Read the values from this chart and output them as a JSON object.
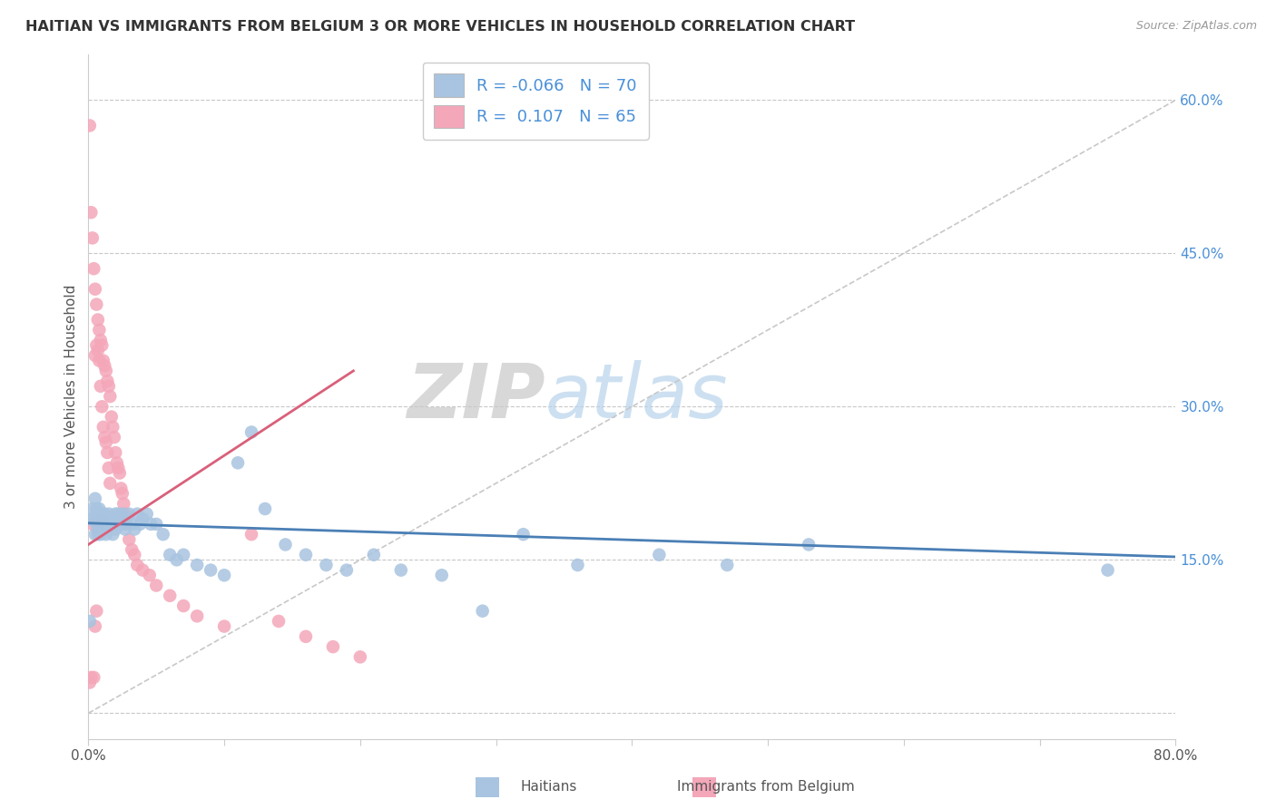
{
  "title": "HAITIAN VS IMMIGRANTS FROM BELGIUM 3 OR MORE VEHICLES IN HOUSEHOLD CORRELATION CHART",
  "source": "Source: ZipAtlas.com",
  "ylabel": "3 or more Vehicles in Household",
  "ytick_vals": [
    0.0,
    0.15,
    0.3,
    0.45,
    0.6
  ],
  "ytick_labels": [
    "",
    "15.0%",
    "30.0%",
    "45.0%",
    "60.0%"
  ],
  "xlim": [
    0.0,
    0.8
  ],
  "ylim": [
    -0.025,
    0.645
  ],
  "blue_R": "-0.066",
  "blue_N": "70",
  "pink_R": "0.107",
  "pink_N": "65",
  "blue_color": "#a8c4e0",
  "pink_color": "#f4a7b9",
  "blue_line_color": "#4a7fb5",
  "pink_line_color": "#d9607a",
  "dashed_line_color": "#c8c8c8",
  "legend_label_blue": "Haitians",
  "legend_label_pink": "Immigrants from Belgium",
  "watermark_zip": "ZIP",
  "watermark_atlas": "atlas",
  "blue_scatter_x": [
    0.001,
    0.002,
    0.003,
    0.004,
    0.005,
    0.005,
    0.006,
    0.006,
    0.007,
    0.007,
    0.008,
    0.008,
    0.009,
    0.009,
    0.01,
    0.01,
    0.011,
    0.012,
    0.013,
    0.013,
    0.014,
    0.015,
    0.015,
    0.016,
    0.017,
    0.018,
    0.019,
    0.02,
    0.02,
    0.021,
    0.022,
    0.023,
    0.024,
    0.025,
    0.026,
    0.027,
    0.028,
    0.03,
    0.032,
    0.034,
    0.036,
    0.038,
    0.04,
    0.043,
    0.046,
    0.05,
    0.055,
    0.06,
    0.065,
    0.07,
    0.08,
    0.09,
    0.1,
    0.11,
    0.12,
    0.13,
    0.145,
    0.16,
    0.175,
    0.19,
    0.21,
    0.23,
    0.26,
    0.29,
    0.32,
    0.36,
    0.42,
    0.47,
    0.53,
    0.75
  ],
  "blue_scatter_y": [
    0.09,
    0.19,
    0.2,
    0.19,
    0.21,
    0.175,
    0.2,
    0.185,
    0.195,
    0.175,
    0.2,
    0.185,
    0.19,
    0.175,
    0.195,
    0.185,
    0.19,
    0.195,
    0.185,
    0.175,
    0.19,
    0.195,
    0.185,
    0.19,
    0.185,
    0.175,
    0.185,
    0.195,
    0.18,
    0.19,
    0.195,
    0.185,
    0.19,
    0.195,
    0.185,
    0.18,
    0.19,
    0.195,
    0.185,
    0.18,
    0.195,
    0.185,
    0.19,
    0.195,
    0.185,
    0.185,
    0.175,
    0.155,
    0.15,
    0.155,
    0.145,
    0.14,
    0.135,
    0.245,
    0.275,
    0.2,
    0.165,
    0.155,
    0.145,
    0.14,
    0.155,
    0.14,
    0.135,
    0.1,
    0.175,
    0.145,
    0.155,
    0.145,
    0.165,
    0.14
  ],
  "pink_scatter_x": [
    0.001,
    0.001,
    0.002,
    0.002,
    0.003,
    0.003,
    0.004,
    0.004,
    0.005,
    0.005,
    0.005,
    0.006,
    0.006,
    0.006,
    0.007,
    0.007,
    0.007,
    0.008,
    0.008,
    0.008,
    0.009,
    0.009,
    0.01,
    0.01,
    0.01,
    0.011,
    0.011,
    0.012,
    0.012,
    0.013,
    0.013,
    0.014,
    0.014,
    0.015,
    0.015,
    0.016,
    0.016,
    0.017,
    0.018,
    0.019,
    0.02,
    0.021,
    0.022,
    0.023,
    0.024,
    0.025,
    0.026,
    0.027,
    0.028,
    0.03,
    0.032,
    0.034,
    0.036,
    0.04,
    0.045,
    0.05,
    0.06,
    0.07,
    0.08,
    0.1,
    0.12,
    0.14,
    0.16,
    0.18,
    0.2
  ],
  "pink_scatter_y": [
    0.575,
    0.03,
    0.49,
    0.035,
    0.465,
    0.185,
    0.435,
    0.035,
    0.415,
    0.35,
    0.085,
    0.4,
    0.36,
    0.1,
    0.385,
    0.355,
    0.18,
    0.375,
    0.345,
    0.185,
    0.365,
    0.32,
    0.36,
    0.3,
    0.19,
    0.345,
    0.28,
    0.34,
    0.27,
    0.335,
    0.265,
    0.325,
    0.255,
    0.32,
    0.24,
    0.31,
    0.225,
    0.29,
    0.28,
    0.27,
    0.255,
    0.245,
    0.24,
    0.235,
    0.22,
    0.215,
    0.205,
    0.195,
    0.185,
    0.17,
    0.16,
    0.155,
    0.145,
    0.14,
    0.135,
    0.125,
    0.115,
    0.105,
    0.095,
    0.085,
    0.175,
    0.09,
    0.075,
    0.065,
    0.055
  ]
}
